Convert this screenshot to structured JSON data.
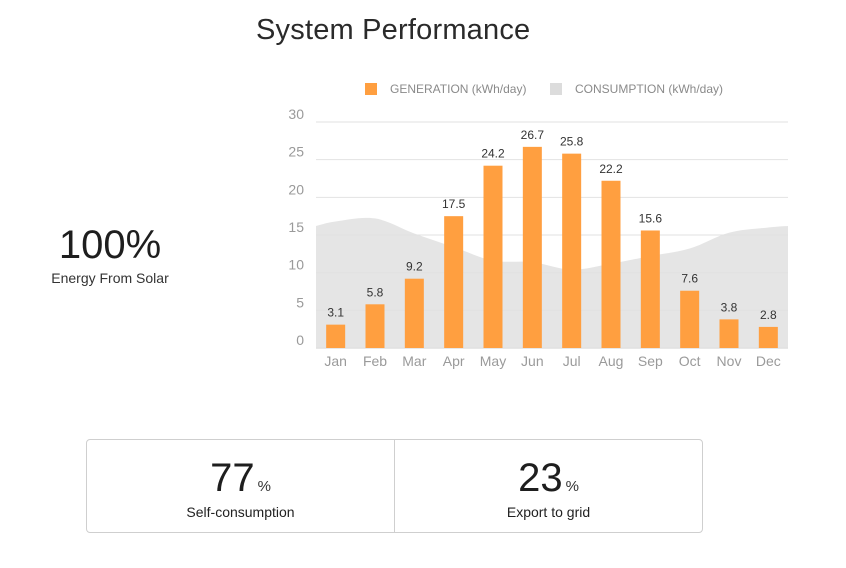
{
  "page": {
    "title": "System Performance",
    "solar": {
      "value": "100%",
      "label": "Energy From Solar"
    },
    "stats": [
      {
        "value": "77",
        "unit": "%",
        "label": "Self-consumption"
      },
      {
        "value": "23",
        "unit": "%",
        "label": "Export to grid"
      }
    ]
  },
  "chart_data": {
    "type": "bar",
    "title": "",
    "xlabel": "",
    "ylabel": "",
    "categories": [
      "Jan",
      "Feb",
      "Mar",
      "Apr",
      "May",
      "Jun",
      "Jul",
      "Aug",
      "Sep",
      "Oct",
      "Nov",
      "Dec"
    ],
    "ylim": [
      0,
      30
    ],
    "yticks": [
      0,
      5,
      10,
      15,
      20,
      25,
      30
    ],
    "grid": true,
    "legend_position": "top",
    "series": [
      {
        "name": "GENERATION (kWh/day)",
        "type": "bar",
        "color": "#FF9F40",
        "values": [
          3.1,
          5.8,
          9.2,
          17.5,
          24.2,
          26.7,
          25.8,
          22.2,
          15.6,
          7.6,
          3.8,
          2.8
        ],
        "data_labels": true
      },
      {
        "name": "CONSUMPTION (kWh/day)",
        "type": "area",
        "color": "#E0E0E0",
        "values": [
          16.8,
          17.2,
          15.2,
          13.4,
          11.6,
          11.4,
          10.4,
          11.2,
          12.2,
          13.2,
          15.3,
          16
        ]
      }
    ]
  }
}
